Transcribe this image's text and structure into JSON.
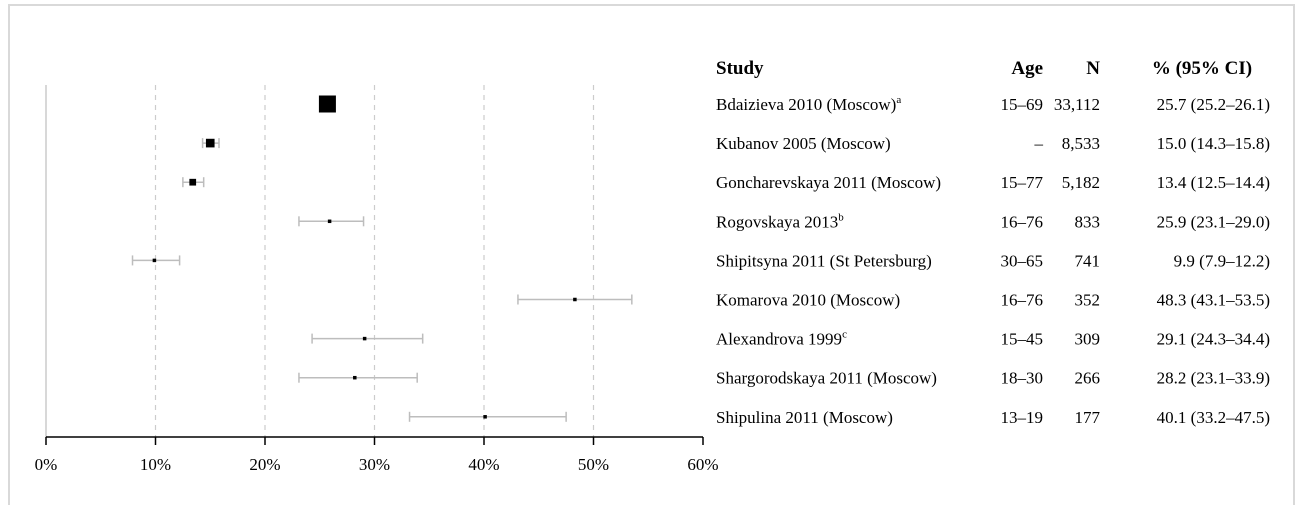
{
  "chart_data": {
    "type": "forest",
    "title": "",
    "xlabel": "",
    "ylabel": "",
    "xlim": [
      0,
      60
    ],
    "x_ticks": [
      0,
      10,
      20,
      30,
      40,
      50,
      60
    ],
    "x_tick_labels": [
      "0%",
      "10%",
      "20%",
      "30%",
      "40%",
      "50%",
      "60%"
    ],
    "grid": "dashed vertical at 10, 20, 30, 40, 50",
    "columns": {
      "study": "Study",
      "age": "Age",
      "n": "N",
      "ci": "% (95% CI)"
    },
    "studies": [
      {
        "study": "Bdaizieva 2010 (Moscow)",
        "sup": "a",
        "age": "15–69",
        "n": "33,112",
        "n_value": 33112,
        "ci_text": "25.7 (25.2–26.1)",
        "estimate": 25.7,
        "lower": 25.2,
        "upper": 26.1
      },
      {
        "study": "Kubanov 2005 (Moscow)",
        "sup": "",
        "age": "–",
        "n": "8,533",
        "n_value": 8533,
        "ci_text": "15.0 (14.3–15.8)",
        "estimate": 15.0,
        "lower": 14.3,
        "upper": 15.8
      },
      {
        "study": "Goncharevskaya 2011 (Moscow)",
        "sup": "",
        "age": "15–77",
        "n": "5,182",
        "n_value": 5182,
        "ci_text": "13.4 (12.5–14.4)",
        "estimate": 13.4,
        "lower": 12.5,
        "upper": 14.4
      },
      {
        "study": "Rogovskaya 2013",
        "sup": "b",
        "age": "16–76",
        "n": "833",
        "n_value": 833,
        "ci_text": "25.9 (23.1–29.0)",
        "estimate": 25.9,
        "lower": 23.1,
        "upper": 29.0
      },
      {
        "study": "Shipitsyna 2011 (St Petersburg)",
        "sup": "",
        "age": "30–65",
        "n": "741",
        "n_value": 741,
        "ci_text": "9.9 (7.9–12.2)",
        "estimate": 9.9,
        "lower": 7.9,
        "upper": 12.2
      },
      {
        "study": "Komarova 2010 (Moscow)",
        "sup": "",
        "age": "16–76",
        "n": "352",
        "n_value": 352,
        "ci_text": "48.3 (43.1–53.5)",
        "estimate": 48.3,
        "lower": 43.1,
        "upper": 53.5
      },
      {
        "study": "Alexandrova 1999",
        "sup": "c",
        "age": "15–45",
        "n": "309",
        "n_value": 309,
        "ci_text": "29.1 (24.3–34.4)",
        "estimate": 29.1,
        "lower": 24.3,
        "upper": 34.4
      },
      {
        "study": "Shargorodskaya 2011 (Moscow)",
        "sup": "",
        "age": "18–30",
        "n": "266",
        "n_value": 266,
        "ci_text": "28.2 (23.1–33.9)",
        "estimate": 28.2,
        "lower": 23.1,
        "upper": 33.9
      },
      {
        "study": "Shipulina 2011 (Moscow)",
        "sup": "",
        "age": "13–19",
        "n": "177",
        "n_value": 177,
        "ci_text": "40.1 (33.2–47.5)",
        "estimate": 40.1,
        "lower": 33.2,
        "upper": 47.5
      }
    ],
    "colors": {
      "point": "#000000",
      "ci_line": "#bdbdbd",
      "grid": "#cccccc",
      "axis": "#000000",
      "frame": "#d9d9d9"
    }
  }
}
